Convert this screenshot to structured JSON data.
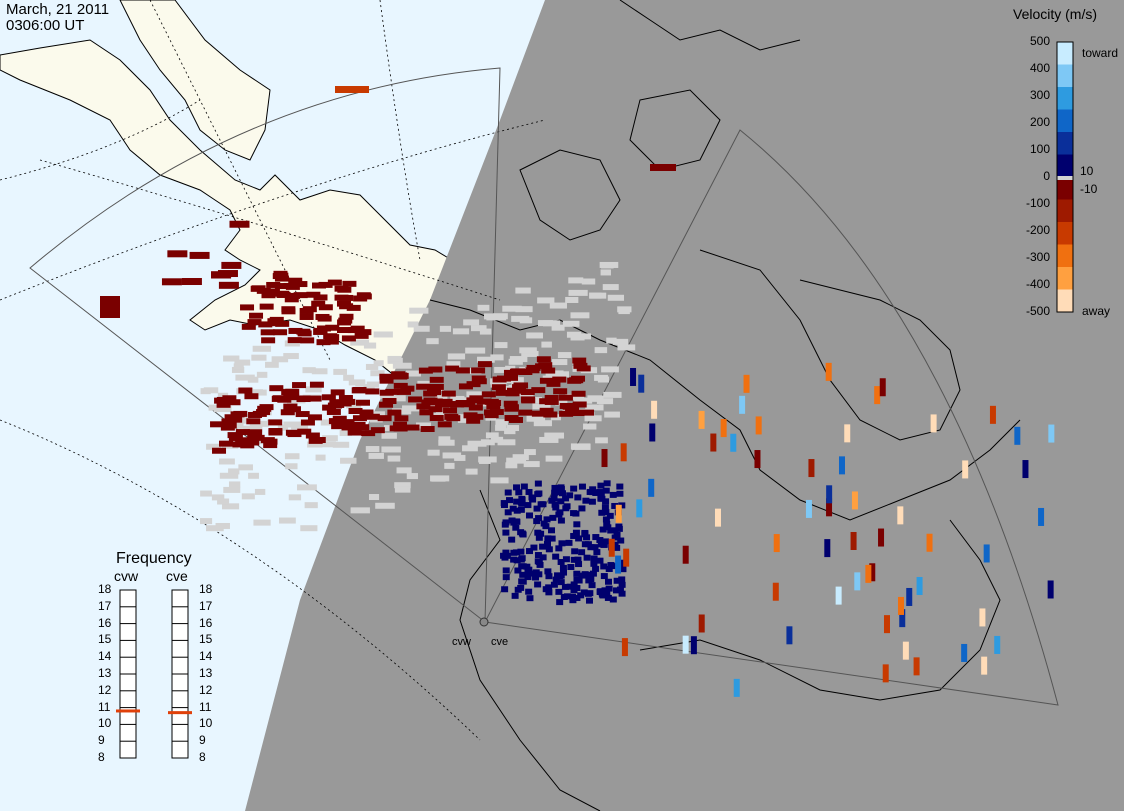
{
  "header": {
    "date": "March, 21 2011",
    "time": "0306:00 UT"
  },
  "legend": {
    "title": "Velocity (m/s)",
    "ticks": [
      "500",
      "400",
      "300",
      "200",
      "100",
      "0",
      "-100",
      "-200",
      "-300",
      "-400",
      "-500"
    ],
    "extra_ticks": [
      "10",
      "-10"
    ],
    "toward_label": "toward",
    "away_label": "away",
    "colors": [
      "#c8ecff",
      "#7ec8f5",
      "#2e9be0",
      "#0f66c8",
      "#0a2f9a",
      "#00006e",
      "#7a0000",
      "#9e1a00",
      "#c83a00",
      "#f07010",
      "#ffa040",
      "#ffdcb8"
    ],
    "gray_color": "#d3d3d3"
  },
  "frequency": {
    "title": "Frequency",
    "columns": [
      {
        "name": "cvw",
        "value_mhz": 10.8
      },
      {
        "name": "cve",
        "value_mhz": 10.7
      }
    ],
    "levels": [
      "18",
      "17",
      "16",
      "15",
      "14",
      "13",
      "12",
      "11",
      "10",
      "9",
      "8"
    ],
    "marker_color": "#e0400a"
  },
  "radars": [
    {
      "id": "cvw",
      "label": "cvw"
    },
    {
      "id": "cve",
      "label": "cve"
    }
  ],
  "map_colors": {
    "ocean": "#e8f6ff",
    "land_day": "#fbfaec",
    "night": "#999999",
    "coast": "#000000"
  }
}
